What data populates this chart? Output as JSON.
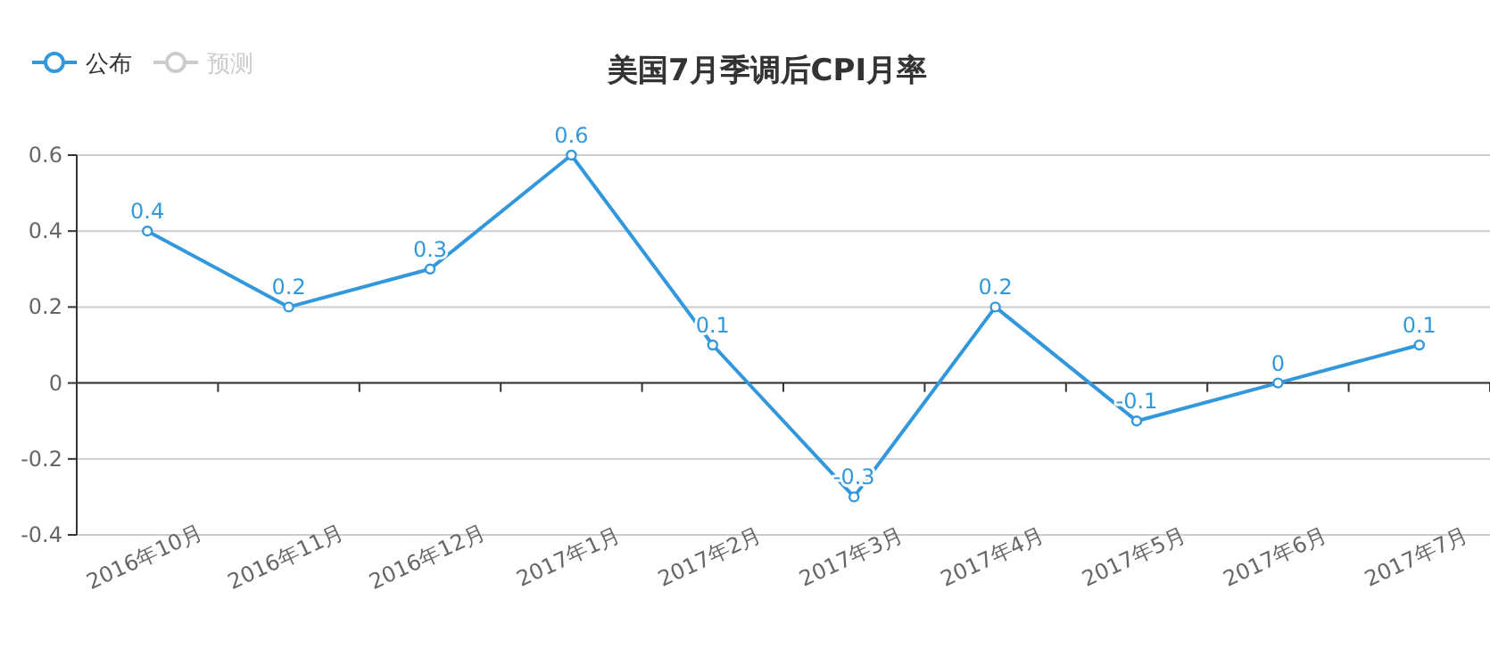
{
  "chart_data": {
    "type": "line",
    "title": "美国7月季调后CPI月率",
    "categories": [
      "2016年10月",
      "2016年11月",
      "2016年12月",
      "2017年1月",
      "2017年2月",
      "2017年3月",
      "2017年4月",
      "2017年5月",
      "2017年6月",
      "2017年7月"
    ],
    "series": [
      {
        "name": "公布",
        "color": "#3398db",
        "values": [
          0.4,
          0.2,
          0.3,
          0.6,
          0.1,
          -0.3,
          0.2,
          -0.1,
          0,
          0.1
        ]
      },
      {
        "name": "预测",
        "color": "#cccccc",
        "values": [
          null,
          null,
          null,
          null,
          null,
          null,
          null,
          null,
          null,
          null
        ]
      }
    ],
    "ylim": [
      -0.4,
      0.6
    ],
    "yticks": [
      -0.4,
      -0.2,
      0,
      0.2,
      0.4,
      0.6
    ],
    "grid": "y",
    "legend": "top left",
    "marker": "circle",
    "line_style": "solid",
    "data_labels": true
  }
}
